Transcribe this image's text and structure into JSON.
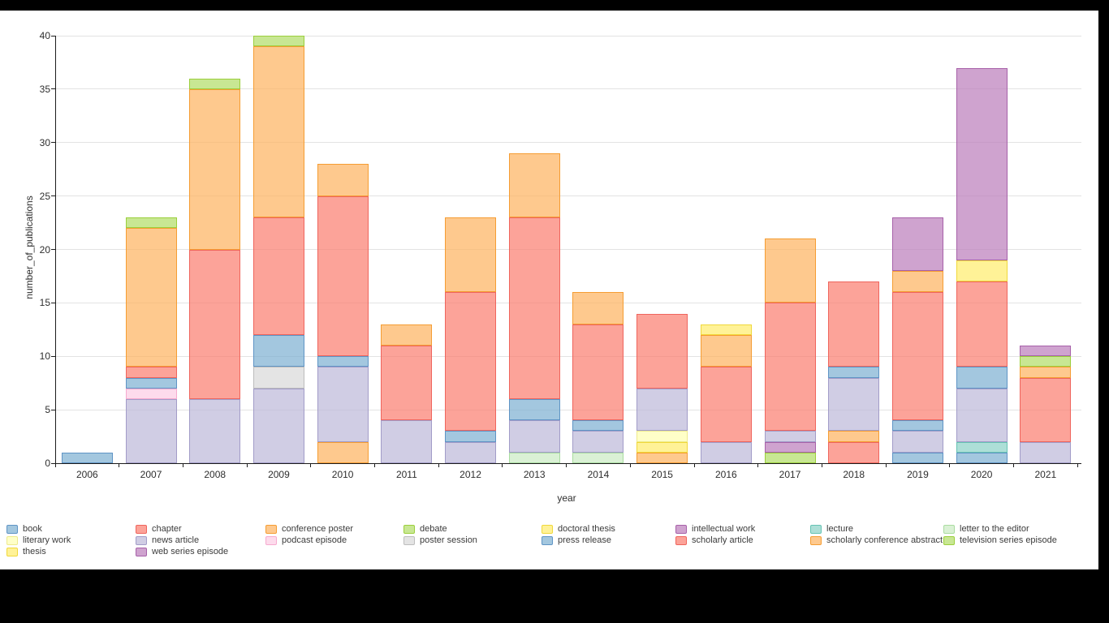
{
  "chart_data": {
    "type": "bar",
    "stacked": true,
    "title": "",
    "xlabel": "year",
    "ylabel": "number_of_publications",
    "ylim": [
      0,
      40
    ],
    "yticks": [
      0,
      5,
      10,
      15,
      20,
      25,
      30,
      35,
      40
    ],
    "grid": true,
    "legend_position": "bottom",
    "categories": [
      "2006",
      "2007",
      "2008",
      "2009",
      "2010",
      "2011",
      "2012",
      "2013",
      "2014",
      "2015",
      "2016",
      "2017",
      "2018",
      "2019",
      "2020",
      "2021"
    ],
    "series": [
      {
        "name": "book",
        "color": "#80b1d3",
        "border": "#5f94c5",
        "values": [
          1,
          0,
          0,
          0,
          0,
          0,
          0,
          0,
          0,
          0,
          0,
          0,
          0,
          1,
          1,
          0
        ]
      },
      {
        "name": "chapter",
        "color": "#fb8072",
        "border": "#ef655d",
        "values": [
          0,
          0,
          0,
          0,
          0,
          0,
          0,
          0,
          0,
          0,
          0,
          0,
          2,
          0,
          0,
          0
        ]
      },
      {
        "name": "conference poster",
        "color": "#fdb462",
        "border": "#f59d33",
        "values": [
          0,
          0,
          0,
          0,
          2,
          0,
          0,
          0,
          0,
          1,
          0,
          0,
          1,
          0,
          0,
          0
        ]
      },
      {
        "name": "debate",
        "color": "#b3de69",
        "border": "#9bcf3c",
        "values": [
          0,
          0,
          0,
          0,
          0,
          0,
          0,
          0,
          0,
          0,
          0,
          1,
          0,
          0,
          0,
          0
        ]
      },
      {
        "name": "doctoral thesis",
        "color": "#ffed6f",
        "border": "#f0d83a",
        "values": [
          0,
          0,
          0,
          0,
          0,
          0,
          0,
          0,
          0,
          1,
          0,
          0,
          0,
          0,
          0,
          0
        ]
      },
      {
        "name": "intellectual work",
        "color": "#bc80bd",
        "border": "#a761a9",
        "values": [
          0,
          0,
          0,
          0,
          0,
          0,
          0,
          0,
          0,
          0,
          0,
          1,
          0,
          0,
          0,
          0
        ]
      },
      {
        "name": "lecture",
        "color": "#8dd3c7",
        "border": "#66c3b3",
        "values": [
          0,
          0,
          0,
          0,
          0,
          0,
          0,
          0,
          0,
          0,
          0,
          0,
          0,
          0,
          1,
          0
        ]
      },
      {
        "name": "letter to the editor",
        "color": "#ccebc5",
        "border": "#a9dca0",
        "values": [
          0,
          0,
          0,
          0,
          0,
          0,
          0,
          1,
          1,
          0,
          0,
          0,
          0,
          0,
          0,
          0
        ]
      },
      {
        "name": "literary work",
        "color": "#ffffb3",
        "border": "#eeea8c",
        "values": [
          0,
          0,
          0,
          0,
          0,
          0,
          0,
          0,
          0,
          1,
          0,
          0,
          0,
          0,
          0,
          0
        ]
      },
      {
        "name": "news article",
        "color": "#bebada",
        "border": "#a29cc8",
        "values": [
          0,
          6,
          6,
          7,
          7,
          4,
          2,
          3,
          2,
          4,
          2,
          1,
          5,
          2,
          5,
          2
        ]
      },
      {
        "name": "podcast episode",
        "color": "#fccde5",
        "border": "#f6aacf",
        "values": [
          0,
          1,
          0,
          0,
          0,
          0,
          0,
          0,
          0,
          0,
          0,
          0,
          0,
          0,
          0,
          0
        ]
      },
      {
        "name": "poster session",
        "color": "#d9d9d9",
        "border": "#bdbdbd",
        "values": [
          0,
          0,
          0,
          2,
          0,
          0,
          0,
          0,
          0,
          0,
          0,
          0,
          0,
          0,
          0,
          0
        ]
      },
      {
        "name": "press release",
        "color": "#80b1d3",
        "border": "#5f94c5",
        "values": [
          0,
          1,
          0,
          3,
          1,
          0,
          1,
          2,
          1,
          0,
          0,
          0,
          1,
          1,
          2,
          0
        ]
      },
      {
        "name": "scholarly article",
        "color": "#fb8072",
        "border": "#ef655d",
        "values": [
          0,
          1,
          14,
          11,
          15,
          7,
          13,
          17,
          9,
          7,
          7,
          12,
          8,
          12,
          8,
          6
        ]
      },
      {
        "name": "scholarly conference abstract",
        "color": "#fdb462",
        "border": "#f59d33",
        "values": [
          0,
          13,
          15,
          16,
          3,
          2,
          7,
          6,
          3,
          0,
          3,
          6,
          0,
          2,
          0,
          1
        ]
      },
      {
        "name": "television series episode",
        "color": "#b3de69",
        "border": "#9bcf3c",
        "values": [
          0,
          1,
          1,
          1,
          0,
          0,
          0,
          0,
          0,
          0,
          0,
          0,
          0,
          0,
          0,
          1
        ]
      },
      {
        "name": "thesis",
        "color": "#ffed6f",
        "border": "#f0d83a",
        "values": [
          0,
          0,
          0,
          0,
          0,
          0,
          0,
          0,
          0,
          0,
          1,
          0,
          0,
          0,
          2,
          0
        ]
      },
      {
        "name": "web series episode",
        "color": "#bc80bd",
        "border": "#a761a9",
        "values": [
          0,
          0,
          0,
          0,
          0,
          0,
          0,
          0,
          0,
          0,
          0,
          0,
          0,
          5,
          18,
          1
        ]
      }
    ],
    "totals": [
      1,
      23,
      36,
      40,
      28,
      13,
      23,
      29,
      16,
      14,
      13,
      21,
      17,
      23,
      37,
      11
    ]
  },
  "frame": {
    "background": "#000000",
    "surface": "#ffffff"
  }
}
